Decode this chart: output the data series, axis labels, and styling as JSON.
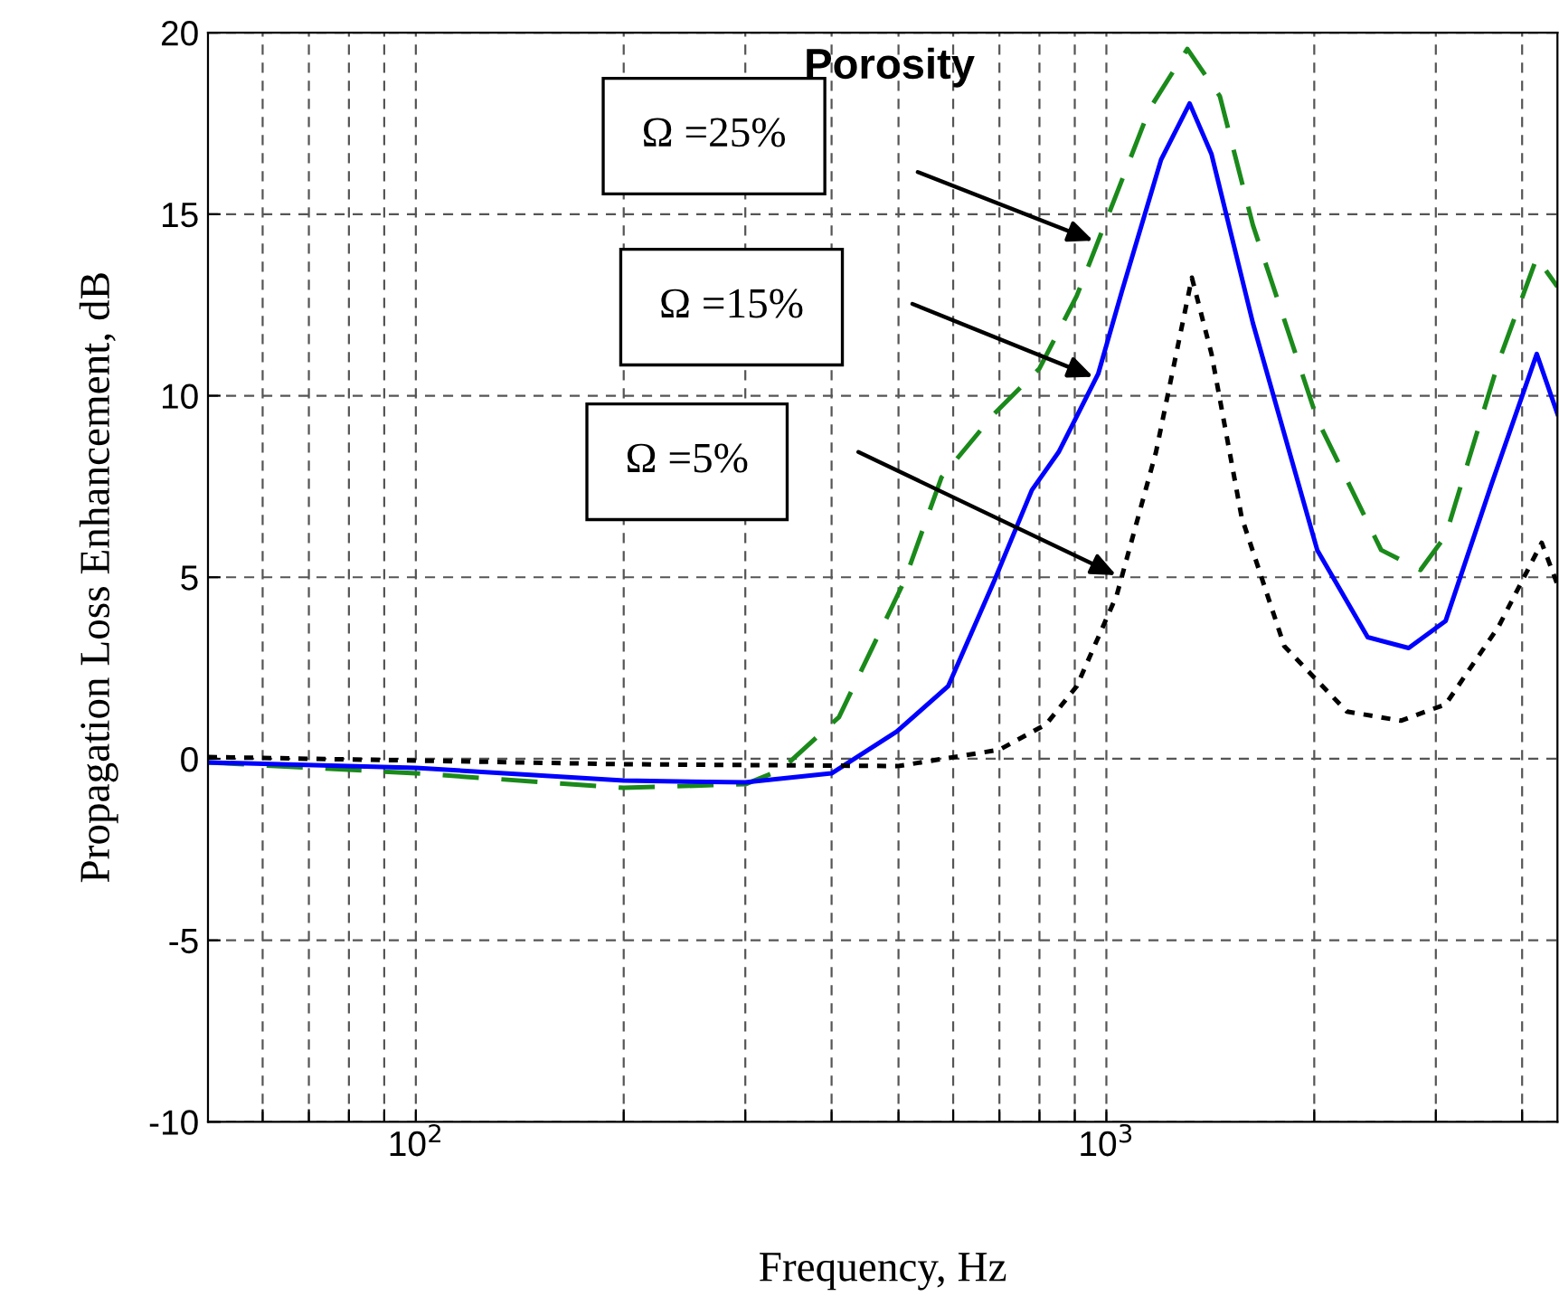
{
  "chart_data": {
    "type": "line",
    "xlabel": "Frequency, Hz",
    "ylabel": "Propagation Loss Enhancement, dB",
    "log": "x",
    "grid": true,
    "xlim": [
      50,
      4500
    ],
    "ylim": [
      -10,
      20
    ],
    "xticks": [
      {
        "value": 60,
        "label": null
      },
      {
        "value": 70,
        "label": null
      },
      {
        "value": 80,
        "label": null
      },
      {
        "value": 90,
        "label": null
      },
      {
        "value": 100,
        "label": "10$^{2}$"
      },
      {
        "value": 200,
        "label": null
      },
      {
        "value": 300,
        "label": null
      },
      {
        "value": 400,
        "label": null
      },
      {
        "value": 500,
        "label": null
      },
      {
        "value": 600,
        "label": null
      },
      {
        "value": 700,
        "label": null
      },
      {
        "value": 800,
        "label": null
      },
      {
        "value": 900,
        "label": null
      },
      {
        "value": 1000,
        "label": "10$^{3}$"
      },
      {
        "value": 2000,
        "label": null
      },
      {
        "value": 3000,
        "label": null
      },
      {
        "value": 4000,
        "label": null
      }
    ],
    "yticks": [
      -10,
      -5,
      0,
      5,
      10,
      15,
      20
    ],
    "series": [
      {
        "color": "#1a8a1a",
        "line_style": "dashed",
        "x": [
          50,
          100,
          200,
          300,
          338,
          410,
          510,
          577,
          688,
          800,
          906,
          1010,
          1155,
          1310,
          1460,
          1630,
          2020,
          2500,
          2850,
          3100,
          3700,
          4200,
          4500
        ],
        "values": [
          -0.1,
          -0.4,
          -0.8,
          -0.7,
          -0.3,
          1.15,
          4.9,
          7.75,
          9.5,
          10.75,
          12.75,
          15.05,
          17.9,
          19.55,
          18.25,
          14.7,
          9.35,
          5.75,
          5.2,
          6.15,
          10.95,
          13.8,
          13.0
        ]
      },
      {
        "color": "#0000ff",
        "line_style": "solid",
        "x": [
          50,
          100,
          200,
          300,
          400,
          497,
          590,
          688,
          780,
          853,
          973,
          1054,
          1200,
          1320,
          1420,
          1630,
          2020,
          2390,
          2740,
          3100,
          3610,
          4200,
          4500
        ],
        "values": [
          -0.1,
          -0.25,
          -0.6,
          -0.65,
          -0.4,
          0.75,
          2.0,
          4.9,
          7.4,
          8.45,
          10.6,
          12.9,
          16.5,
          18.05,
          16.65,
          12.0,
          5.75,
          3.35,
          3.05,
          3.8,
          7.55,
          11.15,
          9.5
        ]
      },
      {
        "color": "#000000",
        "line_style": "dotted",
        "x": [
          50,
          100,
          200,
          500,
          700,
          818,
          906,
          1035,
          1180,
          1330,
          1420,
          1570,
          1810,
          2230,
          2670,
          3100,
          3700,
          4270,
          4500
        ],
        "values": [
          0.05,
          -0.05,
          -0.15,
          -0.2,
          0.25,
          0.95,
          2.0,
          4.5,
          8.45,
          13.25,
          11.15,
          6.65,
          3.1,
          1.3,
          1.05,
          1.5,
          3.65,
          5.95,
          4.8
        ]
      }
    ],
    "annotations": [
      "Porosity",
      "Ω =25%",
      "Ω =15%",
      "Ω =5%"
    ]
  }
}
